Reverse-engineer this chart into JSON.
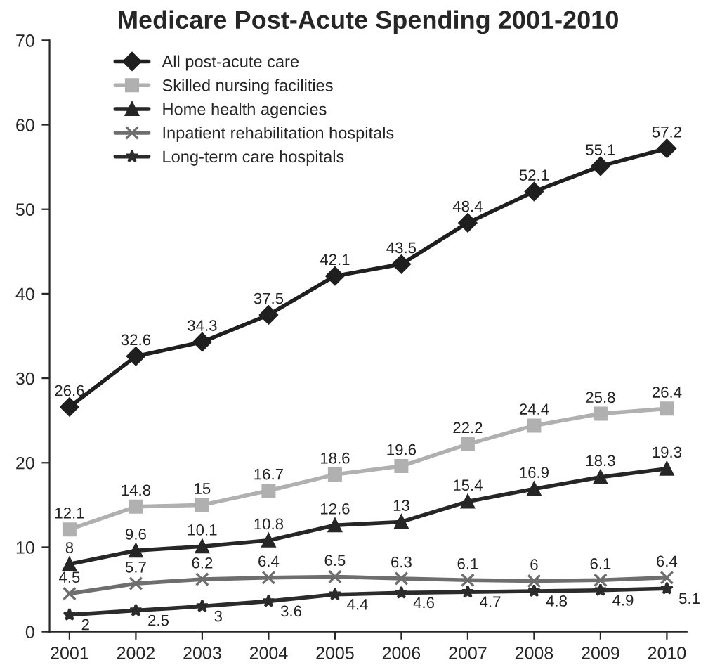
{
  "chart_data": {
    "type": "line",
    "title": "Medicare Post-Acute Spending 2001-2010",
    "categories": [
      "2001",
      "2002",
      "2003",
      "2004",
      "2005",
      "2006",
      "2007",
      "2008",
      "2009",
      "2010"
    ],
    "series": [
      {
        "name": "All post-acute care",
        "color": "#1f1f1f",
        "marker": "diamond",
        "values": [
          26.6,
          32.6,
          34.3,
          37.5,
          42.1,
          43.5,
          48.4,
          52.1,
          55.1,
          57.2
        ]
      },
      {
        "name": "Skilled nursing facilities",
        "color": "#b0b0b0",
        "marker": "square",
        "values": [
          12.1,
          14.8,
          15,
          16.7,
          18.6,
          19.6,
          22.2,
          24.4,
          25.8,
          26.4
        ]
      },
      {
        "name": "Home health agencies",
        "color": "#262626",
        "marker": "triangle",
        "values": [
          8,
          9.6,
          10.1,
          10.8,
          12.6,
          13,
          15.4,
          16.9,
          18.3,
          19.3
        ]
      },
      {
        "name": "Inpatient rehabilitation hospitals",
        "color": "#6e6e6e",
        "marker": "cross",
        "values": [
          4.5,
          5.7,
          6.2,
          6.4,
          6.5,
          6.3,
          6.1,
          6,
          6.1,
          6.4
        ]
      },
      {
        "name": "Long-term care hospitals",
        "color": "#2b2b2b",
        "marker": "star",
        "values": [
          2,
          2.5,
          3,
          3.6,
          4.4,
          4.6,
          4.7,
          4.8,
          4.9,
          5.1
        ]
      }
    ],
    "ylim": [
      0,
      70
    ],
    "yticks": [
      0,
      10,
      20,
      30,
      40,
      50,
      60,
      70
    ],
    "grid": false,
    "legend": "top left",
    "data_labels": true,
    "line_style": "solid"
  }
}
